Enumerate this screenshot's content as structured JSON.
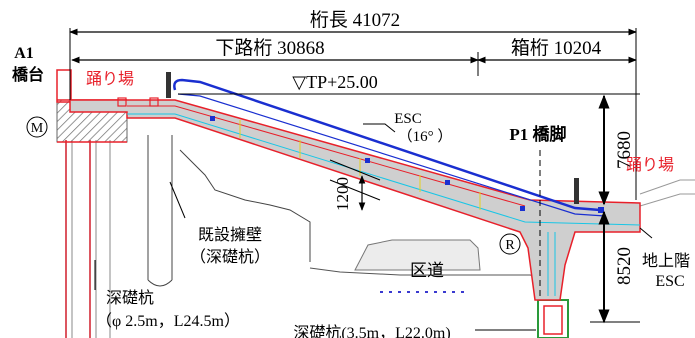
{
  "dimensions": {
    "total_length": "桁長 41072",
    "lower_girder": "下路桁 30868",
    "box_girder": "箱桁 10204",
    "height_upper": "7680",
    "height_lower": "8520",
    "slab_thickness": "1200"
  },
  "labels": {
    "a1_line1": "A1",
    "a1_line2": "橋台",
    "landing_left": "踊り場",
    "landing_right": "踊り場",
    "tp_level": "▽TP+25.00",
    "esc": "ESC",
    "esc_angle": "（16°  ）",
    "p1_pier": "P1 橋脚",
    "marker_m": "M",
    "marker_r": "R",
    "retaining_wall_1": "既設擁壁",
    "retaining_wall_2": "（深礎杭）",
    "ward_road": "区道",
    "ground_esc_1": "地上階",
    "ground_esc_2": "ESC",
    "deep_pile_1": "深礎杭",
    "deep_pile_2": "（φ 2.5m，L24.5m）",
    "deep_pile_bottom": "深礎杭(3.5m，L22.0m)"
  },
  "colors": {
    "highlight_red": "#e8202a",
    "escalator_blue": "#1a2fd0",
    "concrete_fill": "#cfcfcf",
    "cyan_line": "#19c6e6"
  }
}
